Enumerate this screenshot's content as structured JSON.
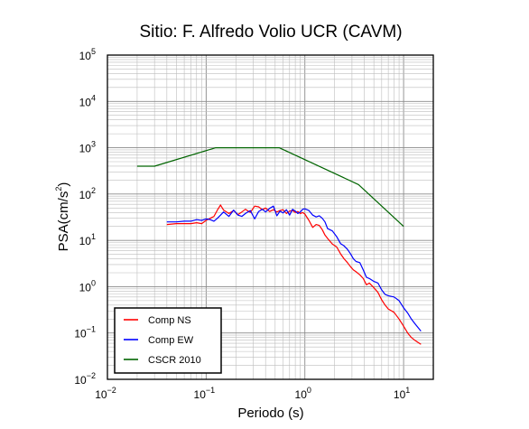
{
  "chart_data": {
    "type": "line",
    "title": "Sitio: F. Alfredo Volio UCR (CAVM)",
    "xlabel": "Periodo (s)",
    "ylabel": {
      "base": "PSA(cm/s",
      "exp": "2",
      "close": ")"
    },
    "x_scale": "log",
    "y_scale": "log",
    "xlim": [
      0.01,
      20
    ],
    "ylim": [
      0.01,
      100000
    ],
    "grid": true,
    "legend_position": "bottom-left",
    "x_ticks": [
      {
        "base": "10",
        "exp": "−2"
      },
      {
        "base": "10",
        "exp": "−1"
      },
      {
        "base": "10",
        "exp": "0"
      },
      {
        "base": "10",
        "exp": "1"
      }
    ],
    "y_ticks": [
      {
        "base": "10",
        "exp": "−2"
      },
      {
        "base": "10",
        "exp": "−1"
      },
      {
        "base": "10",
        "exp": "0"
      },
      {
        "base": "10",
        "exp": "1"
      },
      {
        "base": "10",
        "exp": "2"
      },
      {
        "base": "10",
        "exp": "3"
      },
      {
        "base": "10",
        "exp": "4"
      },
      {
        "base": "10",
        "exp": "5"
      }
    ],
    "series": [
      {
        "name": "Comp NS",
        "color": "#ff0000",
        "points": [
          [
            0.04,
            22
          ],
          [
            0.05,
            23
          ],
          [
            0.06,
            23
          ],
          [
            0.07,
            23
          ],
          [
            0.08,
            24
          ],
          [
            0.09,
            23
          ],
          [
            0.1,
            27
          ],
          [
            0.11,
            30
          ],
          [
            0.12,
            33
          ],
          [
            0.13,
            45
          ],
          [
            0.14,
            58
          ],
          [
            0.15,
            45
          ],
          [
            0.17,
            38
          ],
          [
            0.19,
            44
          ],
          [
            0.21,
            36
          ],
          [
            0.23,
            41
          ],
          [
            0.25,
            47
          ],
          [
            0.28,
            40
          ],
          [
            0.31,
            55
          ],
          [
            0.34,
            53
          ],
          [
            0.37,
            46
          ],
          [
            0.4,
            50
          ],
          [
            0.44,
            42
          ],
          [
            0.48,
            46
          ],
          [
            0.52,
            41
          ],
          [
            0.56,
            44
          ],
          [
            0.6,
            46
          ],
          [
            0.65,
            38
          ],
          [
            0.7,
            43
          ],
          [
            0.75,
            44
          ],
          [
            0.8,
            40
          ],
          [
            0.85,
            42
          ],
          [
            0.9,
            38
          ],
          [
            0.95,
            40
          ],
          [
            1.0,
            37
          ],
          [
            1.1,
            27
          ],
          [
            1.2,
            19
          ],
          [
            1.3,
            22
          ],
          [
            1.4,
            21
          ],
          [
            1.5,
            17
          ],
          [
            1.6,
            13
          ],
          [
            1.7,
            11
          ],
          [
            1.9,
            8.3
          ],
          [
            2.1,
            7.2
          ],
          [
            2.3,
            5.1
          ],
          [
            2.5,
            4.0
          ],
          [
            2.7,
            3.3
          ],
          [
            2.9,
            2.7
          ],
          [
            3.1,
            2.3
          ],
          [
            3.3,
            2.1
          ],
          [
            3.6,
            1.8
          ],
          [
            3.9,
            1.5
          ],
          [
            4.2,
            1.1
          ],
          [
            4.5,
            1.2
          ],
          [
            5.0,
            0.95
          ],
          [
            5.5,
            0.75
          ],
          [
            6.0,
            0.52
          ],
          [
            6.5,
            0.4
          ],
          [
            7.0,
            0.33
          ],
          [
            8.0,
            0.28
          ],
          [
            9.0,
            0.2
          ],
          [
            10.0,
            0.14
          ],
          [
            11.0,
            0.1
          ],
          [
            12.0,
            0.08
          ],
          [
            13.0,
            0.07
          ],
          [
            15.0,
            0.057
          ]
        ]
      },
      {
        "name": "Comp EW",
        "color": "#0000ff",
        "points": [
          [
            0.04,
            25
          ],
          [
            0.05,
            25
          ],
          [
            0.06,
            26
          ],
          [
            0.07,
            26
          ],
          [
            0.08,
            28
          ],
          [
            0.09,
            27
          ],
          [
            0.1,
            29
          ],
          [
            0.11,
            28
          ],
          [
            0.12,
            26
          ],
          [
            0.13,
            30
          ],
          [
            0.14,
            35
          ],
          [
            0.15,
            41
          ],
          [
            0.17,
            33
          ],
          [
            0.19,
            45
          ],
          [
            0.21,
            35
          ],
          [
            0.23,
            33
          ],
          [
            0.25,
            38
          ],
          [
            0.28,
            44
          ],
          [
            0.31,
            29
          ],
          [
            0.34,
            42
          ],
          [
            0.37,
            47
          ],
          [
            0.4,
            41
          ],
          [
            0.44,
            49
          ],
          [
            0.48,
            55
          ],
          [
            0.52,
            34
          ],
          [
            0.56,
            43
          ],
          [
            0.6,
            39
          ],
          [
            0.65,
            46
          ],
          [
            0.7,
            35
          ],
          [
            0.75,
            47
          ],
          [
            0.8,
            43
          ],
          [
            0.85,
            38
          ],
          [
            0.9,
            41
          ],
          [
            0.95,
            47
          ],
          [
            1.0,
            48
          ],
          [
            1.1,
            44
          ],
          [
            1.2,
            35
          ],
          [
            1.3,
            32
          ],
          [
            1.4,
            34
          ],
          [
            1.5,
            30
          ],
          [
            1.6,
            25
          ],
          [
            1.7,
            18
          ],
          [
            1.9,
            16
          ],
          [
            2.1,
            12
          ],
          [
            2.3,
            8.5
          ],
          [
            2.5,
            7.6
          ],
          [
            2.7,
            6.4
          ],
          [
            2.9,
            5.1
          ],
          [
            3.1,
            4.0
          ],
          [
            3.3,
            3.5
          ],
          [
            3.6,
            3.3
          ],
          [
            3.9,
            2.3
          ],
          [
            4.2,
            1.6
          ],
          [
            4.5,
            1.5
          ],
          [
            5.0,
            1.3
          ],
          [
            5.5,
            1.2
          ],
          [
            6.0,
            0.85
          ],
          [
            6.5,
            0.68
          ],
          [
            7.0,
            0.64
          ],
          [
            8.0,
            0.6
          ],
          [
            9.0,
            0.5
          ],
          [
            10.0,
            0.35
          ],
          [
            11.0,
            0.27
          ],
          [
            12.0,
            0.2
          ],
          [
            13.0,
            0.16
          ],
          [
            15.0,
            0.11
          ]
        ]
      },
      {
        "name": "CSCR 2010",
        "color": "#006400",
        "points": [
          [
            0.02,
            400
          ],
          [
            0.03,
            400
          ],
          [
            0.125,
            1000
          ],
          [
            0.55,
            1000
          ],
          [
            3.5,
            160
          ],
          [
            10.0,
            20
          ]
        ]
      }
    ]
  }
}
